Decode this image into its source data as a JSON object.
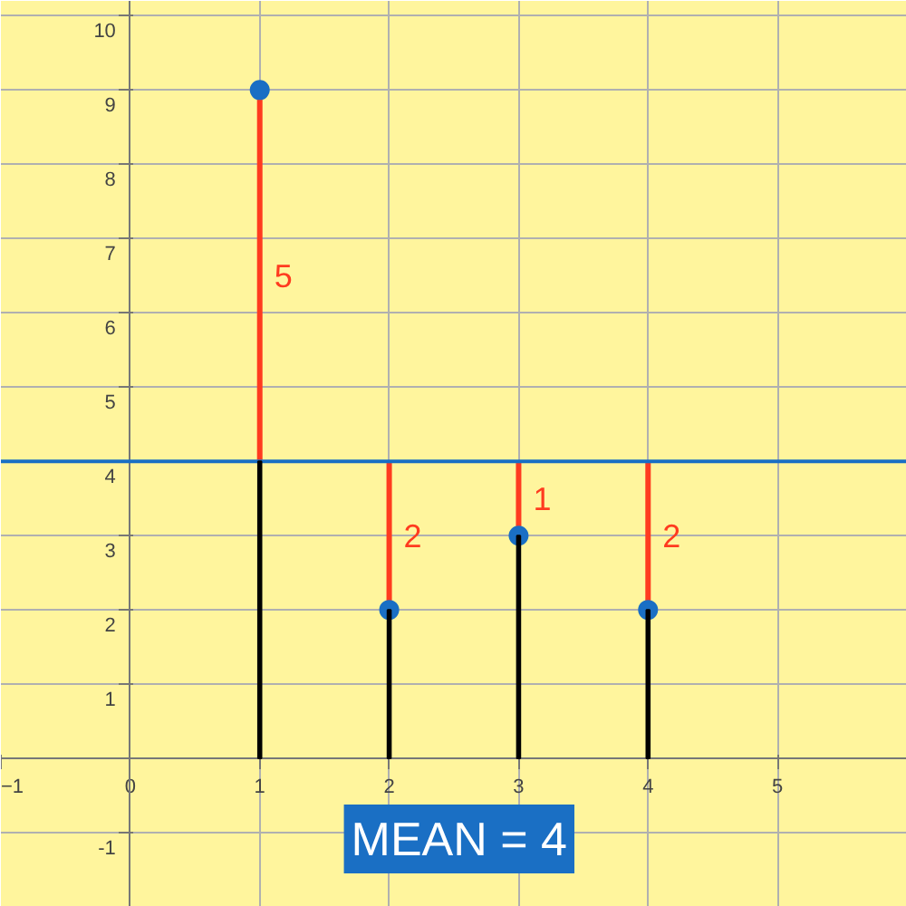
{
  "chart_data": {
    "type": "scatter",
    "x": [
      1,
      2,
      3,
      4
    ],
    "series": [
      {
        "type": "bar",
        "color": "#000000",
        "values": [
          4,
          2,
          3,
          2
        ]
      },
      {
        "color": "#1a6fc4",
        "values": [
          9,
          2,
          3,
          2
        ],
        "errors": [
          [
            4,
            9
          ],
          [
            2,
            4
          ],
          [
            3,
            4
          ],
          [
            2,
            4
          ]
        ]
      }
    ],
    "marker": "circle",
    "grid": true,
    "xlim": [
      -1,
      6
    ],
    "ylim": [
      -2,
      10.2
    ],
    "xticks": [
      -1,
      0,
      1,
      2,
      3,
      4,
      5
    ],
    "yticks": [
      -1,
      1,
      2,
      3,
      4,
      5,
      6,
      7,
      8,
      9,
      10
    ],
    "ref_lines": [
      {
        "axis": "y",
        "value": 4,
        "color": "#1a6fc4"
      }
    ],
    "annotations": [
      "MEAN = 4",
      "5",
      "2",
      "1",
      "2"
    ]
  }
}
